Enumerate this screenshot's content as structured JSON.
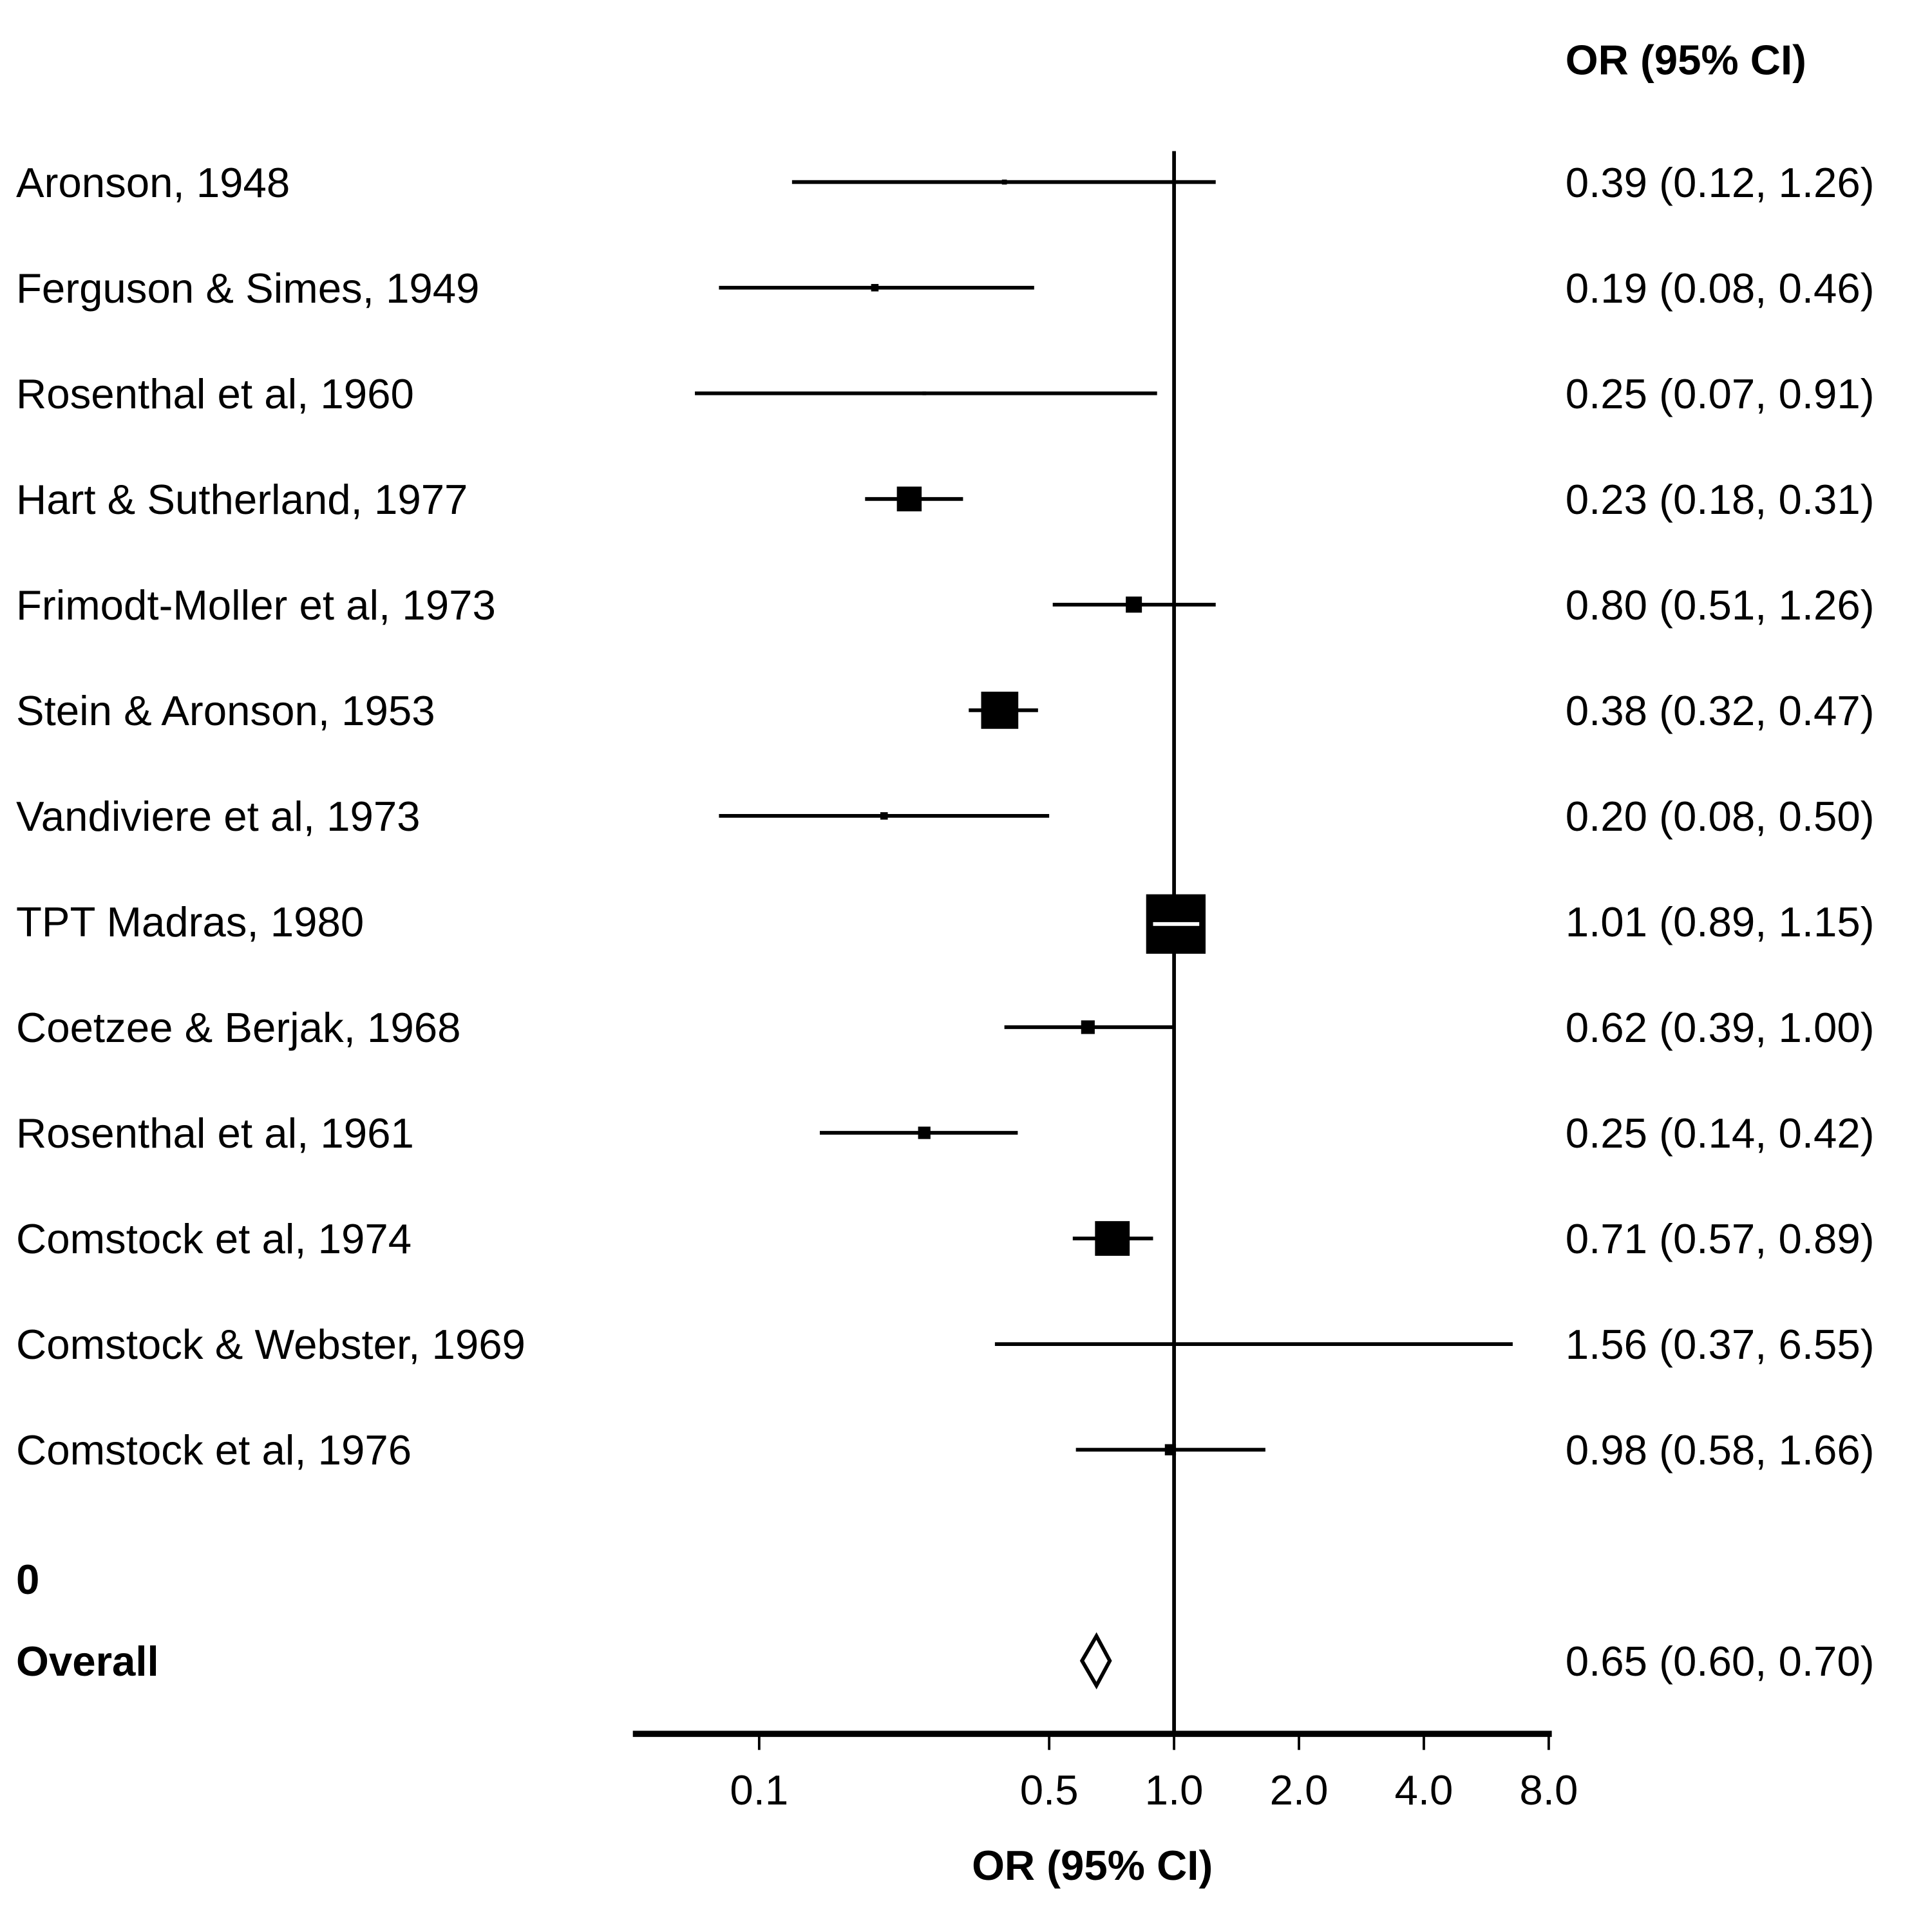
{
  "chart_data": {
    "type": "forest",
    "column_header": "OR (95% CI)",
    "xlabel": "OR (95% CI)",
    "xscale": "log",
    "xlim": [
      0.05,
      8.0
    ],
    "xticks": [
      0.1,
      0.5,
      1.0,
      2.0,
      4.0,
      8.0
    ],
    "xtick_labels": [
      "0.1",
      "0.5",
      "1.0",
      "2.0",
      "4.0",
      "8.0"
    ],
    "reference_line": 1.0,
    "studies": [
      {
        "label": "Aronson, 1948",
        "or": 0.39,
        "lo": 0.12,
        "hi": 1.26,
        "ci_text": "0.39 (0.12, 1.26)",
        "weight": 4
      },
      {
        "label": "Ferguson & Simes, 1949",
        "or": 0.19,
        "lo": 0.08,
        "hi": 0.46,
        "ci_text": "0.19 (0.08, 0.46)",
        "weight": 6
      },
      {
        "label": "Rosenthal et al, 1960",
        "or": 0.25,
        "lo": 0.07,
        "hi": 0.91,
        "ci_text": "0.25 (0.07, 0.91)",
        "weight": 3
      },
      {
        "label": "Hart & Sutherland, 1977",
        "or": 0.23,
        "lo": 0.18,
        "hi": 0.31,
        "ci_text": "0.23 (0.18, 0.31)",
        "weight": 20
      },
      {
        "label": "Frimodt-Moller et al, 1973",
        "or": 0.8,
        "lo": 0.51,
        "hi": 1.26,
        "ci_text": "0.80 (0.51, 1.26)",
        "weight": 13
      },
      {
        "label": "Stein & Aronson, 1953",
        "or": 0.38,
        "lo": 0.32,
        "hi": 0.47,
        "ci_text": "0.38 (0.32, 0.47)",
        "weight": 30
      },
      {
        "label": "Vandiviere et al, 1973",
        "or": 0.2,
        "lo": 0.08,
        "hi": 0.5,
        "ci_text": "0.20 (0.08, 0.50)",
        "weight": 6
      },
      {
        "label": "TPT Madras, 1980",
        "or": 1.01,
        "lo": 0.89,
        "hi": 1.15,
        "ci_text": "1.01 (0.89, 1.15)",
        "weight": 48
      },
      {
        "label": "Coetzee & Berjak, 1968",
        "or": 0.62,
        "lo": 0.39,
        "hi": 1.0,
        "ci_text": "0.62 (0.39, 1.00)",
        "weight": 11
      },
      {
        "label": "Rosenthal et al, 1961",
        "or": 0.25,
        "lo": 0.14,
        "hi": 0.42,
        "ci_text": "0.25 (0.14, 0.42)",
        "weight": 10
      },
      {
        "label": "Comstock et al, 1974",
        "or": 0.71,
        "lo": 0.57,
        "hi": 0.89,
        "ci_text": "0.71 (0.57, 0.89)",
        "weight": 28
      },
      {
        "label": "Comstock & Webster, 1969",
        "or": 1.56,
        "lo": 0.37,
        "hi": 6.55,
        "ci_text": "1.56 (0.37, 6.55)",
        "weight": 2
      },
      {
        "label": "Comstock et al, 1976",
        "or": 0.98,
        "lo": 0.58,
        "hi": 1.66,
        "ci_text": "0.98 (0.58, 1.66)",
        "weight": 9
      }
    ],
    "subgroup_label": "0",
    "overall": {
      "label": "Overall",
      "or": 0.65,
      "lo": 0.6,
      "hi": 0.7,
      "ci_text": "0.65 (0.60, 0.70)"
    }
  }
}
